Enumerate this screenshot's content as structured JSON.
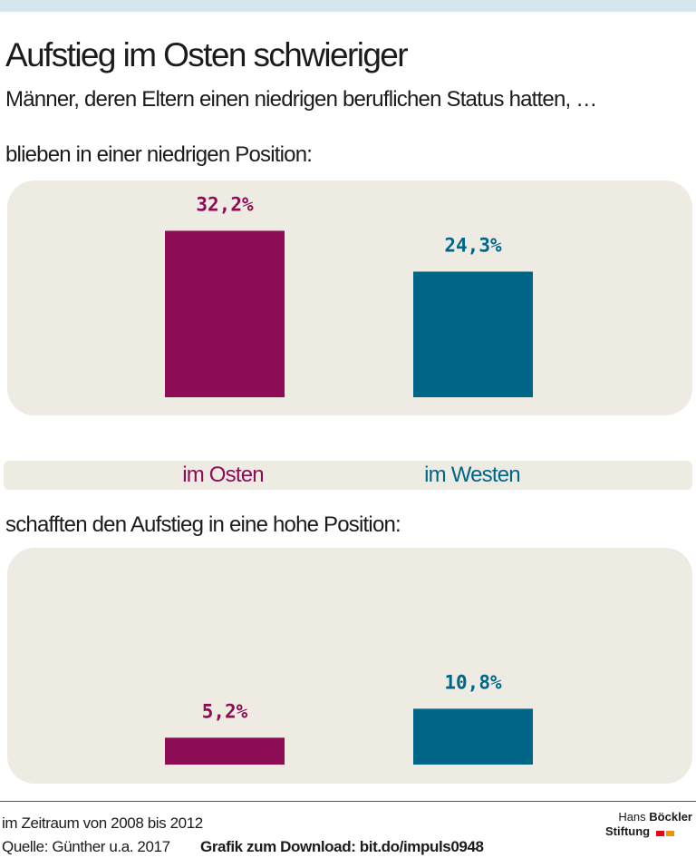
{
  "title": "Aufstieg im Osten schwieriger",
  "subtitle": "Männer, deren Eltern einen niedrigen beruflichen Status hatten, …",
  "legend": {
    "east": "im Osten",
    "west": "im Westen"
  },
  "colors": {
    "east": "#8c0c55",
    "west": "#006688",
    "panel_background": "#eeebe2",
    "top_band": "#d6e6ef",
    "logo_red": "#e30613",
    "logo_orange": "#f39200"
  },
  "chart_data": [
    {
      "type": "bar",
      "title": "blieben in einer niedrigen Position:",
      "categories": [
        "im Osten",
        "im Westen"
      ],
      "values": [
        32.2,
        24.3
      ],
      "labels": [
        "32,2%",
        "24,3%"
      ],
      "unit": "%",
      "grid": false
    },
    {
      "type": "bar",
      "title": "schafften den Aufstieg in eine hohe Position:",
      "categories": [
        "im Osten",
        "im Westen"
      ],
      "values": [
        5.2,
        10.8
      ],
      "labels": [
        "5,2%",
        "10,8%"
      ],
      "unit": "%",
      "grid": false
    }
  ],
  "footer": {
    "period": "im Zeitraum von 2008 bis 2012",
    "source": "Quelle: Günther u.a. 2017",
    "download": "Grafik zum Download: bit.do/impuls0948"
  },
  "logo": {
    "line1_light": "Hans",
    "line1_bold": "Böckler",
    "line2": "Stiftung"
  }
}
